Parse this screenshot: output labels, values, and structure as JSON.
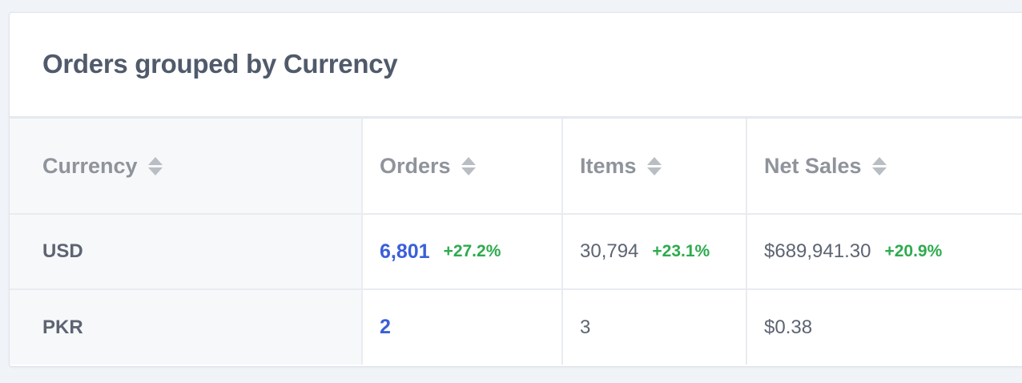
{
  "card": {
    "title": "Orders grouped by Currency"
  },
  "table": {
    "headers": {
      "currency": "Currency",
      "orders": "Orders",
      "items": "Items",
      "net_sales": "Net Sales"
    },
    "rows": [
      {
        "currency": "USD",
        "orders": "6,801",
        "orders_change": "+27.2%",
        "items": "30,794",
        "items_change": "+23.1%",
        "net_sales": "$689,941.30",
        "net_sales_change": "+20.9%"
      },
      {
        "currency": "PKR",
        "orders": "2",
        "items": "3",
        "net_sales": "$0.38"
      }
    ]
  },
  "colors": {
    "link": "#3a5fd9",
    "positive_change": "#2eab4e",
    "title": "#505a6b",
    "header_text": "#8f939b"
  },
  "icons": {
    "sort": "sort-icon"
  }
}
